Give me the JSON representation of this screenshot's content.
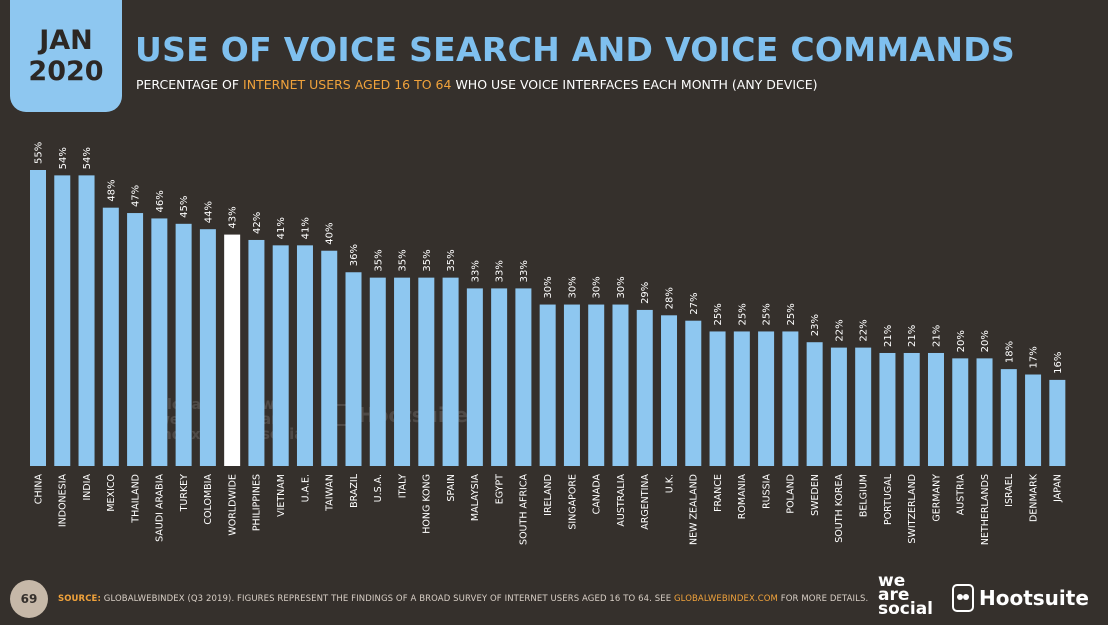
{
  "header": {
    "date_line1": "JAN",
    "date_line2": "2020",
    "title": "USE OF VOICE SEARCH AND VOICE COMMANDS",
    "subtitle_pre": "PERCENTAGE OF ",
    "subtitle_highlight": "INTERNET USERS AGED 16 TO 64",
    "subtitle_post": " WHO USE VOICE INTERFACES EACH MONTH (ANY DEVICE)"
  },
  "watermarks": {
    "gwi_lines": [
      "global",
      "web",
      "index"
    ],
    "was_lines": [
      "we",
      "are",
      "social"
    ],
    "hootsuite": "Hootsuite"
  },
  "footer": {
    "page_number": "69",
    "source_label": "SOURCE:",
    "source_text": " GLOBALWEBINDEX (Q3 2019). FIGURES REPRESENT THE FINDINGS OF A BROAD SURVEY OF INTERNET USERS AGED 16 TO 64. SEE ",
    "source_link": "GLOBALWEBINDEX.COM",
    "source_end": " FOR MORE DETAILS.",
    "logo_was": [
      "we",
      "are",
      "social"
    ],
    "logo_hootsuite": "Hootsuite"
  },
  "colors": {
    "background": "#35302c",
    "bar": "#8ec7f0",
    "highlight_bar": "#ffffff",
    "title": "#7fc0ef",
    "accent": "#f0a23b"
  },
  "chart_data": {
    "type": "bar",
    "categories": [
      "CHINA",
      "INDONESIA",
      "INDIA",
      "MEXICO",
      "THAILAND",
      "SAUDI ARABIA",
      "TURKEY",
      "COLOMBIA",
      "WORLDWIDE",
      "PHILIPPINES",
      "VIETNAM",
      "U.A.E.",
      "TAIWAN",
      "BRAZIL",
      "U.S.A.",
      "ITALY",
      "HONG KONG",
      "SPAIN",
      "MALAYSIA",
      "EGYPT",
      "SOUTH AFRICA",
      "IRELAND",
      "SINGAPORE",
      "CANADA",
      "AUSTRALIA",
      "ARGENTINA",
      "U.K.",
      "NEW ZEALAND",
      "FRANCE",
      "ROMANIA",
      "RUSSIA",
      "POLAND",
      "SWEDEN",
      "SOUTH KOREA",
      "BELGIUM",
      "PORTUGAL",
      "SWITZERLAND",
      "GERMANY",
      "AUSTRIA",
      "NETHERLANDS",
      "ISRAEL",
      "DENMARK",
      "JAPAN"
    ],
    "values": [
      55,
      54,
      54,
      48,
      47,
      46,
      45,
      44,
      43,
      42,
      41,
      41,
      40,
      36,
      35,
      35,
      35,
      35,
      33,
      33,
      33,
      30,
      30,
      30,
      30,
      29,
      28,
      27,
      25,
      25,
      25,
      25,
      23,
      22,
      22,
      21,
      21,
      21,
      20,
      20,
      18,
      17,
      16
    ],
    "value_labels": [
      "55%",
      "54%",
      "54%",
      "48%",
      "47%",
      "46%",
      "45%",
      "44%",
      "43%",
      "42%",
      "41%",
      "41%",
      "40%",
      "36%",
      "35%",
      "35%",
      "35%",
      "35%",
      "33%",
      "33%",
      "33%",
      "30%",
      "30%",
      "30%",
      "30%",
      "29%",
      "28%",
      "27%",
      "25%",
      "25%",
      "25%",
      "25%",
      "23%",
      "22%",
      "22%",
      "21%",
      "21%",
      "21%",
      "20%",
      "20%",
      "18%",
      "17%",
      "16%"
    ],
    "highlight": "WORLDWIDE",
    "ylim": [
      0,
      55
    ],
    "grid": false
  }
}
